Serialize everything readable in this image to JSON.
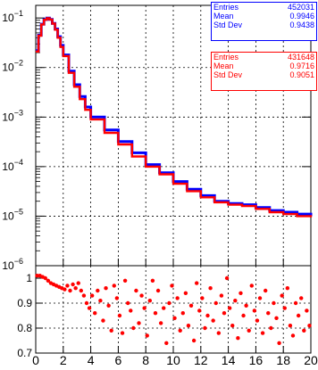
{
  "chart_data": [
    {
      "type": "line",
      "yscale": "log",
      "xlim": [
        0,
        20
      ],
      "ylim": [
        1e-06,
        0.18
      ],
      "grid": true,
      "ytick_labels": [
        {
          "base": "10",
          "exp": "−1",
          "value": 0.1
        },
        {
          "base": "10",
          "exp": "−2",
          "value": 0.01
        },
        {
          "base": "10",
          "exp": "−3",
          "value": 0.001
        },
        {
          "base": "10",
          "exp": "−4",
          "value": 0.0001
        },
        {
          "base": "10",
          "exp": "−5",
          "value": 1e-05
        },
        {
          "base": "10",
          "exp": "−6",
          "value": 1e-06
        }
      ],
      "series": [
        {
          "color": "#0000ff",
          "x": [
            0,
            0.2,
            0.4,
            0.6,
            0.8,
            1.0,
            1.2,
            1.4,
            1.6,
            1.8,
            2.0,
            2.4,
            2.8,
            3.2,
            3.6,
            4.0,
            5.0,
            6.0,
            7.0,
            8.0,
            9.0,
            10.0,
            11.0,
            12.0,
            13.0,
            14.0,
            15.0,
            16.0,
            17.0,
            18.0,
            19.0,
            20.0
          ],
          "y": [
            0.022,
            0.045,
            0.075,
            0.093,
            0.1,
            0.094,
            0.078,
            0.06,
            0.042,
            0.028,
            0.018,
            0.0085,
            0.0045,
            0.0026,
            0.0016,
            0.001,
            0.00055,
            0.00032,
            0.00019,
            0.00011,
            7.5e-05,
            5e-05,
            3.5e-05,
            2.6e-05,
            2e-05,
            1.8e-05,
            1.7e-05,
            1.5e-05,
            1.3e-05,
            1.2e-05,
            1.1e-05,
            1e-05
          ]
        },
        {
          "color": "#ff0000",
          "x": [
            0,
            0.2,
            0.4,
            0.6,
            0.8,
            1.0,
            1.2,
            1.4,
            1.6,
            1.8,
            2.0,
            2.4,
            2.8,
            3.2,
            3.6,
            4.0,
            5.0,
            6.0,
            7.0,
            8.0,
            9.0,
            10.0,
            11.0,
            12.0,
            13.0,
            14.0,
            15.0,
            16.0,
            17.0,
            18.0,
            19.0,
            20.0
          ],
          "y": [
            0.021,
            0.044,
            0.074,
            0.092,
            0.099,
            0.093,
            0.077,
            0.058,
            0.04,
            0.026,
            0.017,
            0.0078,
            0.0041,
            0.0023,
            0.0014,
            0.0009,
            0.00048,
            0.00028,
            0.00016,
            0.0001,
            7e-05,
            4.5e-05,
            3.2e-05,
            2.4e-05,
            1.9e-05,
            1.7e-05,
            1.6e-05,
            1.4e-05,
            1.2e-05,
            1.1e-05,
            1e-05,
            9.5e-06
          ]
        }
      ]
    },
    {
      "type": "scatter",
      "xlim": [
        0,
        20
      ],
      "ylim": [
        0.7,
        1.05
      ],
      "grid": true,
      "xticks": [
        "0",
        "2",
        "4",
        "6",
        "8",
        "10",
        "12",
        "14",
        "16",
        "18",
        "20"
      ],
      "yticks": [
        "1",
        "0.9",
        "0.8",
        "0.7"
      ],
      "points": {
        "color": "#ff0000",
        "x": [
          0.1,
          0.3,
          0.5,
          0.7,
          0.9,
          1.1,
          1.3,
          1.5,
          1.7,
          1.9,
          2.1,
          2.3,
          2.5,
          2.7,
          2.9,
          3.1,
          3.3,
          3.5,
          3.7,
          3.9,
          4.1,
          4.3,
          4.5,
          4.7,
          4.9,
          5.1,
          5.3,
          5.5,
          5.7,
          5.9,
          6.1,
          6.3,
          6.5,
          6.7,
          6.9,
          7.1,
          7.3,
          7.5,
          7.7,
          7.9,
          8.1,
          8.3,
          8.5,
          8.7,
          8.9,
          9.1,
          9.3,
          9.5,
          9.7,
          9.9,
          10.1,
          10.3,
          10.5,
          10.7,
          10.9,
          11.1,
          11.3,
          11.5,
          11.7,
          11.9,
          12.1,
          12.3,
          12.5,
          12.7,
          12.9,
          13.1,
          13.3,
          13.5,
          13.7,
          13.9,
          14.1,
          14.3,
          14.5,
          14.7,
          14.9,
          15.1,
          15.3,
          15.5,
          15.7,
          15.9,
          16.1,
          16.3,
          16.5,
          16.7,
          16.9,
          17.1,
          17.3,
          17.5,
          17.7,
          17.9,
          18.1,
          18.3,
          18.5,
          18.7,
          18.9,
          19.1,
          19.3,
          19.5,
          19.7,
          19.9
        ],
        "y": [
          1.01,
          1.01,
          1.005,
          1.0,
          0.99,
          0.98,
          0.975,
          0.97,
          0.965,
          0.96,
          0.955,
          0.97,
          0.95,
          0.975,
          0.96,
          0.98,
          0.95,
          0.93,
          0.9,
          0.88,
          0.93,
          0.86,
          0.95,
          0.91,
          0.83,
          0.96,
          0.89,
          0.79,
          0.97,
          0.92,
          0.85,
          0.78,
          0.99,
          0.9,
          0.87,
          0.8,
          0.95,
          0.82,
          0.93,
          0.88,
          0.77,
          0.91,
          0.99,
          0.86,
          0.95,
          0.82,
          0.88,
          0.74,
          0.9,
          0.97,
          0.84,
          0.92,
          0.79,
          0.86,
          0.94,
          0.81,
          0.89,
          0.75,
          0.98,
          0.87,
          0.92,
          0.8,
          0.85,
          0.96,
          0.83,
          0.9,
          0.78,
          0.93,
          0.86,
          1.0,
          0.88,
          0.81,
          0.91,
          0.76,
          0.94,
          0.85,
          0.89,
          0.79,
          0.97,
          0.87,
          0.83,
          0.92,
          0.78,
          0.95,
          0.86,
          0.8,
          0.9,
          0.84,
          0.74,
          0.93,
          0.88,
          0.96,
          0.81,
          0.77,
          0.9,
          0.85,
          0.92,
          0.79,
          0.87,
          0.81
        ]
      }
    }
  ],
  "stats": [
    {
      "color": "#0000ff",
      "rows": [
        {
          "label": "Entries",
          "value": "452031"
        },
        {
          "label": "Mean",
          "value": "0.9946"
        },
        {
          "label": "Std Dev",
          "value": "0.9438"
        }
      ]
    },
    {
      "color": "#ff0000",
      "rows": [
        {
          "label": "Entries",
          "value": "431648"
        },
        {
          "label": "Mean",
          "value": "0.9716"
        },
        {
          "label": "Std Dev",
          "value": "0.9051"
        }
      ]
    }
  ]
}
